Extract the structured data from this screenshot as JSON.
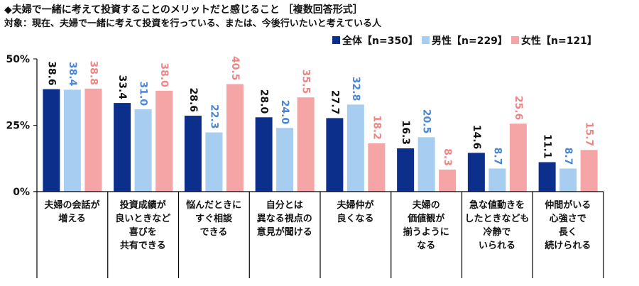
{
  "chart_data": {
    "type": "bar",
    "title": "◆夫婦で一緒に考えて投資することのメリットだと感じること ［複数回答形式］",
    "subtitle": "対象：現在、夫婦で一緒に考えて投資を行っている、または、今後行いたいと考えている人",
    "categories": [
      "夫婦の会話が\n増える",
      "投資成績が\n良いときなど\n喜びを\n共有できる",
      "悩んだときに\nすぐ相談\nできる",
      "自分とは\n異なる視点の\n意見が聞ける",
      "夫婦仲が\n良くなる",
      "夫婦の\n価値観が\n揃うように\nなる",
      "急な値動きを\nしたときなども\n冷静で\nいられる",
      "仲間がいる\n心強さで\n長く\n続けられる"
    ],
    "series": [
      {
        "name": "全体【n=350】",
        "values": [
          38.6,
          33.4,
          28.6,
          28.0,
          27.7,
          16.3,
          14.6,
          11.1
        ],
        "color": "#0d2f8c",
        "label_color": "#111111"
      },
      {
        "name": "男性【n=229】",
        "values": [
          38.4,
          31.0,
          22.3,
          24.0,
          32.8,
          20.5,
          8.7,
          8.7
        ],
        "color": "#a7cdf0",
        "label_color": "#4a86d6"
      },
      {
        "name": "女性【n=121】",
        "values": [
          38.8,
          38.0,
          40.5,
          35.5,
          18.2,
          8.3,
          25.6,
          15.7
        ],
        "color": "#f5a5a5",
        "label_color": "#ee8585"
      }
    ],
    "yticks": [
      "0%",
      "25%",
      "50%"
    ],
    "ylim": [
      0,
      50
    ],
    "legend_position": "top-right",
    "grid": false
  }
}
